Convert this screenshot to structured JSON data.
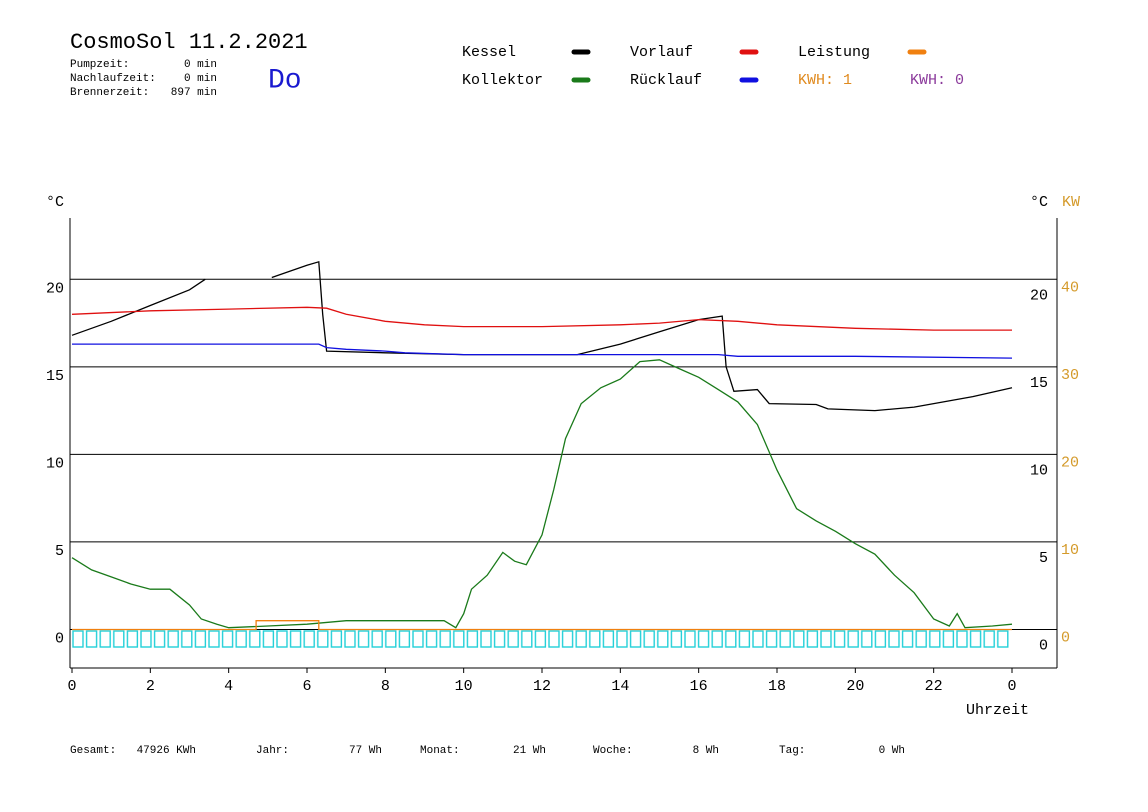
{
  "chart_data": {
    "type": "line",
    "title": "CosmoSol 11.2.2021",
    "weekday": "Do",
    "stats": [
      {
        "label": "Pumpzeit:",
        "value": "0 min"
      },
      {
        "label": "Nachlaufzeit:",
        "value": "0 min"
      },
      {
        "label": "Brennerzeit:",
        "value": "897 min"
      }
    ],
    "kwh": [
      {
        "label": "KWH: 1",
        "color": "#e08a1e"
      },
      {
        "label": "KWH: 0",
        "color": "#8b3a9b"
      }
    ],
    "y_label": "°C",
    "y2_label": "°C",
    "y2_unit": "KW",
    "x_label": "Uhrzeit",
    "xlim": [
      0,
      25.15
    ],
    "xticks": [
      0,
      2,
      4,
      6,
      8,
      10,
      12,
      14,
      16,
      18,
      20,
      22,
      {
        "value": 24,
        "label": "0"
      }
    ],
    "ylim": [
      -2.2,
      23.5
    ],
    "yticks": [
      0,
      5,
      10,
      15,
      20
    ],
    "y2lim": [
      -4.4,
      47
    ],
    "y2ticks": [
      0,
      10,
      20,
      30,
      40
    ],
    "grid": true,
    "series": [
      {
        "name": "Kessel",
        "color": "#000000",
        "x": [
          0,
          1,
          2,
          3,
          3.4,
          3.5,
          5.1,
          6,
          6.3,
          6.4,
          6.5,
          8,
          10,
          12.9,
          14,
          15,
          16,
          16.6,
          16.7,
          16.9,
          17.5,
          17.8,
          19,
          19.3,
          20.5,
          21.5,
          22,
          23,
          24
        ],
        "values": [
          16.8,
          17.6,
          18.5,
          19.4,
          20.0,
          null,
          20.1,
          20.8,
          21.0,
          18.0,
          15.9,
          15.8,
          15.7,
          15.7,
          16.3,
          17.0,
          17.7,
          17.9,
          15.0,
          13.6,
          13.7,
          12.9,
          12.85,
          12.6,
          12.5,
          12.7,
          12.9,
          13.3,
          13.8
        ]
      },
      {
        "name": "Kollektor",
        "color": "#1a7a1a",
        "x": [
          0,
          0.5,
          1,
          1.5,
          2,
          2.5,
          3,
          3.3,
          3.7,
          4,
          5,
          6,
          7,
          8,
          9.5,
          9.8,
          10,
          10.2,
          10.6,
          11,
          11.3,
          11.6,
          12,
          12.3,
          12.6,
          13,
          13.5,
          14,
          14.5,
          15,
          15.5,
          16,
          16.5,
          17,
          17.5,
          18,
          18.5,
          19,
          19.5,
          20,
          20.5,
          21,
          21.5,
          22,
          22.4,
          22.6,
          22.8,
          23.5,
          24
        ],
        "values": [
          4.1,
          3.4,
          3.0,
          2.6,
          2.3,
          2.3,
          1.4,
          0.6,
          0.3,
          0.1,
          0.2,
          0.3,
          0.5,
          0.5,
          0.5,
          0.1,
          0.9,
          2.3,
          3.1,
          4.4,
          3.9,
          3.7,
          5.4,
          8.0,
          10.9,
          12.9,
          13.8,
          14.3,
          15.3,
          15.4,
          14.9,
          14.4,
          13.7,
          13.0,
          11.7,
          9.1,
          6.9,
          6.2,
          5.6,
          4.9,
          4.3,
          3.1,
          2.1,
          0.6,
          0.2,
          0.9,
          0.1,
          0.2,
          0.3
        ]
      },
      {
        "name": "Vorlauf",
        "color": "#e01010",
        "x": [
          0,
          2,
          4,
          6,
          6.5,
          7,
          8,
          9,
          10,
          12,
          14,
          15,
          16,
          17,
          18,
          20,
          22,
          24
        ],
        "values": [
          18.0,
          18.2,
          18.3,
          18.4,
          18.35,
          18.0,
          17.6,
          17.4,
          17.3,
          17.3,
          17.4,
          17.5,
          17.7,
          17.6,
          17.4,
          17.2,
          17.1,
          17.1
        ]
      },
      {
        "name": "Rücklauf",
        "color": "#1010e0",
        "x": [
          0,
          6.3,
          6.5,
          7,
          8,
          8.5,
          10,
          12,
          14,
          16,
          16.5,
          17,
          20,
          24
        ],
        "values": [
          16.3,
          16.3,
          16.1,
          16.0,
          15.9,
          15.8,
          15.7,
          15.7,
          15.7,
          15.7,
          15.7,
          15.6,
          15.6,
          15.5
        ]
      },
      {
        "name": "Leistung",
        "color": "#f08010",
        "axis": "y2",
        "x": [
          0,
          4.7,
          4.7,
          6.3,
          6.3,
          24
        ],
        "values": [
          0,
          0,
          1,
          1,
          0,
          0
        ]
      }
    ],
    "totals": [
      {
        "label": "Gesamt:",
        "value": "47926 KWh"
      },
      {
        "label": "Jahr:",
        "value": "77 Wh"
      },
      {
        "label": "Monat:",
        "value": "21 Wh"
      },
      {
        "label": "Woche:",
        "value": "8 Wh"
      },
      {
        "label": "Tag:",
        "value": "0 Wh"
      }
    ]
  }
}
